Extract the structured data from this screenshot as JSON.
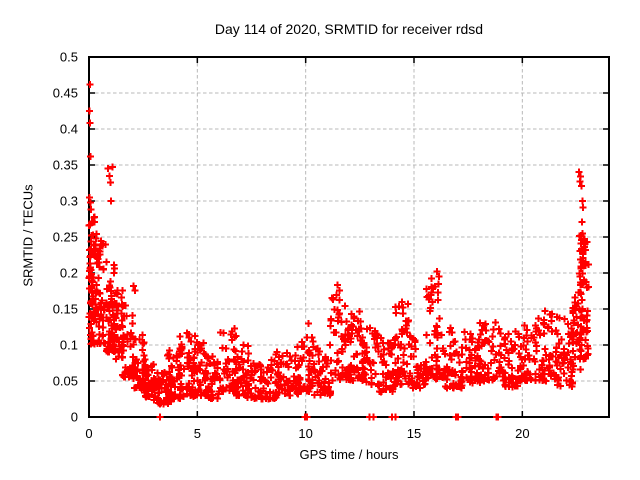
{
  "chart_data": {
    "type": "scatter",
    "title": "Day 114 of 2020, SRMTID for receiver rdsd",
    "xlabel": "GPS time / hours",
    "ylabel": "SRMTID / TECUs",
    "xlim": [
      0,
      24
    ],
    "ylim": [
      0,
      0.5
    ],
    "xticks": [
      0,
      5,
      10,
      15,
      20
    ],
    "xtick_labels": [
      "0",
      "5",
      "10",
      "15",
      "20"
    ],
    "yticks": [
      0,
      0.05,
      0.1,
      0.15,
      0.2,
      0.25,
      0.3,
      0.35,
      0.4,
      0.45,
      0.5
    ],
    "ytick_labels": [
      "0",
      "0.05",
      "0.1",
      "0.15",
      "0.2",
      "0.25",
      "0.3",
      "0.35",
      "0.4",
      "0.45",
      "0.5"
    ],
    "grid": true,
    "legend": "none",
    "marker": "plus",
    "marker_color": "#ff0000",
    "grid_color": "#b8b8b8",
    "border_color": "#000000",
    "seed": 114,
    "outlier_points": [
      [
        0.04,
        0.462
      ],
      [
        0.03,
        0.425
      ],
      [
        0.05,
        0.408
      ],
      [
        0.06,
        0.362
      ],
      [
        0.02,
        0.305
      ],
      [
        0.06,
        0.298
      ],
      [
        0.1,
        0.288
      ],
      [
        0.88,
        0.345
      ],
      [
        0.95,
        0.335
      ],
      [
        1.0,
        0.326
      ],
      [
        1.08,
        0.347
      ],
      [
        1.02,
        0.3
      ],
      [
        2.05,
        0.182
      ],
      [
        2.12,
        0.176
      ],
      [
        10.12,
        0.13
      ],
      [
        11.48,
        0.183
      ],
      [
        11.55,
        0.176
      ],
      [
        14.45,
        0.16
      ],
      [
        16.05,
        0.202
      ],
      [
        16.15,
        0.195
      ],
      [
        22.62,
        0.34
      ],
      [
        22.68,
        0.334
      ],
      [
        22.65,
        0.327
      ],
      [
        22.72,
        0.321
      ],
      [
        22.78,
        0.3
      ],
      [
        22.81,
        0.291
      ],
      [
        22.75,
        0.271
      ],
      [
        22.7,
        0.252
      ],
      [
        22.86,
        0.247
      ],
      [
        22.9,
        0.24
      ]
    ],
    "zero_points": [
      [
        3.28,
        0
      ],
      [
        9.98,
        0
      ],
      [
        10.02,
        0
      ],
      [
        10.06,
        0
      ],
      [
        12.95,
        0
      ],
      [
        13.12,
        0
      ],
      [
        13.98,
        0
      ],
      [
        14.15,
        0
      ],
      [
        16.95,
        0
      ],
      [
        17.0,
        0
      ],
      [
        17.04,
        0
      ],
      [
        18.8,
        0
      ],
      [
        18.84,
        0
      ],
      [
        18.88,
        0
      ]
    ],
    "density_bands_format": [
      "x_start",
      "x_end",
      "count",
      "y_min",
      "y_max",
      "low_bias_exponent"
    ],
    "density_bands": [
      [
        0.0,
        0.3,
        55,
        0.1,
        0.28,
        1.3
      ],
      [
        0.05,
        0.6,
        30,
        0.14,
        0.245,
        1.0
      ],
      [
        0.3,
        0.9,
        45,
        0.1,
        0.26,
        1.4
      ],
      [
        0.8,
        1.2,
        40,
        0.09,
        0.22,
        1.3
      ],
      [
        1.1,
        1.6,
        45,
        0.08,
        0.185,
        1.4
      ],
      [
        1.5,
        2.1,
        45,
        0.055,
        0.155,
        1.5
      ],
      [
        2.0,
        2.6,
        45,
        0.04,
        0.115,
        1.5
      ],
      [
        2.5,
        3.1,
        45,
        0.028,
        0.085,
        1.6
      ],
      [
        3.0,
        3.8,
        55,
        0.018,
        0.062,
        1.5
      ],
      [
        3.6,
        4.3,
        45,
        0.025,
        0.105,
        1.8
      ],
      [
        4.2,
        4.9,
        45,
        0.028,
        0.125,
        1.8
      ],
      [
        4.8,
        5.4,
        40,
        0.03,
        0.115,
        1.8
      ],
      [
        5.3,
        6.1,
        45,
        0.025,
        0.085,
        1.5
      ],
      [
        6.0,
        6.8,
        45,
        0.035,
        0.13,
        1.6
      ],
      [
        6.7,
        7.4,
        40,
        0.03,
        0.105,
        1.7
      ],
      [
        7.3,
        8.7,
        70,
        0.025,
        0.08,
        1.5
      ],
      [
        8.6,
        9.7,
        55,
        0.03,
        0.09,
        1.6
      ],
      [
        9.6,
        10.35,
        45,
        0.035,
        0.125,
        1.7
      ],
      [
        10.3,
        11.15,
        45,
        0.03,
        0.1,
        1.6
      ],
      [
        11.1,
        12.0,
        55,
        0.05,
        0.175,
        1.5
      ],
      [
        11.95,
        12.7,
        50,
        0.05,
        0.148,
        1.5
      ],
      [
        12.6,
        13.45,
        45,
        0.042,
        0.125,
        1.5
      ],
      [
        13.4,
        14.15,
        45,
        0.035,
        0.11,
        1.5
      ],
      [
        14.1,
        14.8,
        45,
        0.045,
        0.158,
        1.6
      ],
      [
        14.75,
        15.6,
        45,
        0.04,
        0.115,
        1.5
      ],
      [
        15.55,
        16.35,
        50,
        0.05,
        0.2,
        1.7
      ],
      [
        16.3,
        17.25,
        50,
        0.04,
        0.125,
        1.5
      ],
      [
        17.2,
        18.05,
        45,
        0.045,
        0.12,
        1.5
      ],
      [
        18.0,
        19.0,
        50,
        0.05,
        0.135,
        1.5
      ],
      [
        19.0,
        19.85,
        45,
        0.042,
        0.12,
        1.5
      ],
      [
        19.8,
        20.65,
        45,
        0.05,
        0.128,
        1.5
      ],
      [
        20.6,
        21.6,
        55,
        0.05,
        0.148,
        1.5
      ],
      [
        21.55,
        22.35,
        50,
        0.042,
        0.15,
        1.6
      ],
      [
        22.3,
        22.75,
        35,
        0.06,
        0.2,
        1.3
      ],
      [
        22.6,
        23.05,
        55,
        0.08,
        0.26,
        1.2
      ],
      [
        22.7,
        22.95,
        12,
        0.2,
        0.255,
        1.0
      ]
    ]
  }
}
